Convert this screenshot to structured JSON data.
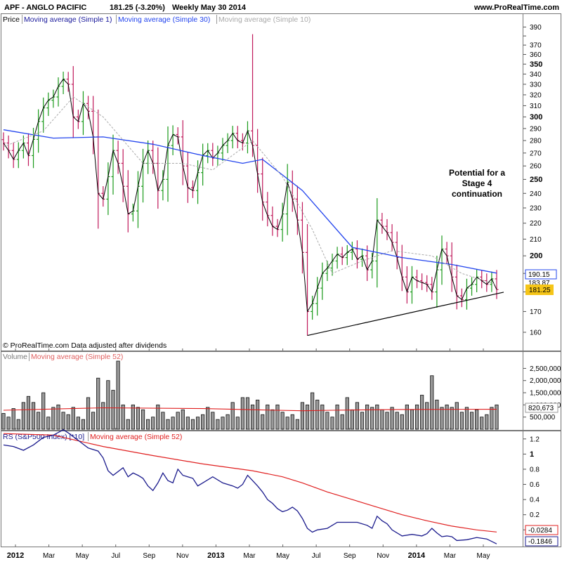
{
  "header": {
    "title": "APF - ANGLO PACIFIC",
    "quote": "181.25 (-3.20%)",
    "period": "Weekly  May 30 2014",
    "site": "www.ProRealTime.com"
  },
  "price_legend": {
    "price": "Price",
    "ma1": "Moving average (Simple 1)",
    "ma30": "Moving average (Simple 30)",
    "ma10": "Moving average (Simple 10)"
  },
  "copyright": "© ProRealTime.com  Data adjusted after dividends",
  "volume_legend": {
    "volume": "Volume",
    "ma52": "Moving average (Simple 52)"
  },
  "rs_legend": {
    "rs": "RS (S&P500 Index) [*10]",
    "ma52": "Moving average (Simple 52)"
  },
  "annotation": [
    "Potential for a",
    "Stage 4",
    "continuation"
  ],
  "value_tags": {
    "ma30_value": "190.15",
    "ma10_value": "183.87",
    "last_price": "181.25",
    "volume_ma": "820,673",
    "rs_ma": "-0.0284",
    "rs_value": "-0.1846"
  },
  "colors": {
    "up_bar": "#1a9a1a",
    "down_bar": "#c0185a",
    "ma30": "#2244ee",
    "ma10": "#aaaaaa",
    "ma1": "#000000",
    "rs_line": "#1a1a8c",
    "rs_ma": "#e02020",
    "price_tag_bg": "#f5c518",
    "panel_border": "#777777"
  },
  "chart_data": [
    {
      "type": "ohlc",
      "title": "APF - ANGLO PACIFIC",
      "x_axis": {
        "labels": [
          "2012",
          "Mar",
          "May",
          "Jul",
          "Sep",
          "Nov",
          "2013",
          "Mar",
          "May",
          "Jul",
          "Sep",
          "Nov",
          "2014",
          "Mar",
          "May"
        ],
        "bold": [
          "2012",
          "2013",
          "2014"
        ]
      },
      "y_axis": {
        "scale": "log",
        "range": [
          152,
          392
        ],
        "ticks": [
          160,
          170,
          180,
          190,
          200,
          210,
          220,
          230,
          240,
          250,
          260,
          270,
          280,
          290,
          300,
          310,
          320,
          330,
          340,
          350,
          360,
          370,
          380,
          390
        ],
        "labeled_ticks": [
          390,
          370,
          360,
          350,
          340,
          330,
          320,
          310,
          300,
          290,
          280,
          270,
          260,
          250,
          240,
          230,
          220,
          210,
          200,
          170,
          160
        ],
        "bold_ticks": [
          350,
          300,
          250,
          200
        ]
      },
      "series": [
        {
          "name": "Price",
          "style": "weekly OHLC bars, green = up, red = down",
          "close": [
            278,
            272,
            265,
            272,
            278,
            268,
            281,
            296,
            308,
            315,
            318,
            328,
            335,
            330,
            300,
            296,
            312,
            305,
            283,
            240,
            236,
            252,
            272,
            262,
            245,
            226,
            228,
            245,
            262,
            272,
            262,
            242,
            250,
            276,
            285,
            283,
            260,
            244,
            242,
            255,
            268,
            272,
            266,
            270,
            276,
            280,
            286,
            280,
            278,
            288,
            276,
            254,
            234,
            225,
            218,
            216,
            226,
            248,
            236,
            222,
            202,
            170,
            174,
            182,
            190,
            193,
            197,
            201,
            199,
            202,
            204,
            198,
            200,
            192,
            197,
            222,
            218,
            214,
            208,
            199,
            188,
            180,
            188,
            186,
            185,
            184,
            180,
            192,
            204,
            200,
            188,
            178,
            176,
            182,
            184,
            188,
            186,
            184,
            187,
            181.25
          ]
        },
        {
          "name": "Moving average (Simple 30)",
          "points": [
            [
              0,
              289
            ],
            [
              10,
              282
            ],
            [
              20,
              283
            ],
            [
              30,
              277
            ],
            [
              40,
              268
            ],
            [
              48,
              262
            ],
            [
              52,
              265
            ],
            [
              60,
              242
            ],
            [
              70,
              205
            ],
            [
              80,
              199
            ],
            [
              90,
              195
            ],
            [
              99,
              190.15
            ]
          ]
        },
        {
          "name": "Moving average (Simple 10)",
          "points": [
            [
              0,
              275
            ],
            [
              8,
              288
            ],
            [
              14,
              318
            ],
            [
              20,
              300
            ],
            [
              28,
              262
            ],
            [
              36,
              262
            ],
            [
              42,
              257
            ],
            [
              50,
              280
            ],
            [
              56,
              252
            ],
            [
              62,
              216
            ],
            [
              66,
              190
            ],
            [
              72,
              197
            ],
            [
              78,
              203
            ],
            [
              86,
              200
            ],
            [
              92,
              190
            ],
            [
              99,
              183.87
            ]
          ]
        }
      ],
      "annotations": [
        {
          "text": "Potential for a Stage 4 continuation"
        },
        {
          "shape": "trend line",
          "from": [
            61,
            158.5
          ],
          "to": [
            99,
            179.5
          ]
        }
      ]
    },
    {
      "type": "bar",
      "title": "Volume",
      "y_axis": {
        "range": [
          0,
          2800000
        ],
        "ticks": [
          500000,
          1000000,
          1500000,
          2000000,
          2500000
        ],
        "tick_labels": [
          "500,000",
          "1,000,000",
          "1,500,000",
          "2,000,000",
          "2,500,000"
        ]
      },
      "series": [
        {
          "name": "Volume",
          "values": [
            650000,
            500000,
            850000,
            400000,
            1100000,
            1350000,
            1100000,
            700000,
            1500000,
            500000,
            900000,
            1000000,
            700000,
            600000,
            900000,
            500000,
            400000,
            1300000,
            700000,
            2100000,
            1100000,
            2000000,
            1600000,
            2800000,
            1000000,
            400000,
            1000000,
            900000,
            800000,
            400000,
            500000,
            1000000,
            700000,
            400000,
            500000,
            700000,
            800000,
            500000,
            400000,
            500000,
            600000,
            900000,
            700000,
            400000,
            500000,
            600000,
            1100000,
            500000,
            1300000,
            1300000,
            1000000,
            1200000,
            600000,
            1000000,
            800000,
            1000000,
            700000,
            500000,
            600000,
            400000,
            1100000,
            1000000,
            1500000,
            1200000,
            1000000,
            700000,
            500000,
            1000000,
            600000,
            1300000,
            800000,
            1100000,
            700000,
            1000000,
            900000,
            1000000,
            800000,
            700000,
            900000,
            700000,
            600000,
            1000000,
            800000,
            1000000,
            1400000,
            1100000,
            2200000,
            1200000,
            900000,
            1000000,
            900000,
            1100000,
            700000,
            900000,
            700000,
            800000,
            500000,
            600000,
            900000,
            1000000
          ]
        },
        {
          "name": "Moving average (Simple 52)",
          "points": [
            [
              0,
              780000
            ],
            [
              20,
              880000
            ],
            [
              40,
              850000
            ],
            [
              52,
              790000
            ],
            [
              60,
              760000
            ],
            [
              66,
              780000
            ],
            [
              80,
              810000
            ],
            [
              99,
              820673
            ]
          ]
        }
      ]
    },
    {
      "type": "line",
      "title": "RS (S&P500 Index) [*10]",
      "y_axis": {
        "range": [
          -0.22,
          1.3
        ],
        "ticks": [
          0,
          0.2,
          0.4,
          0.6,
          0.8,
          1,
          1.2
        ],
        "tick_labels": [
          "0",
          "0.2",
          "0.4",
          "0.6",
          "0.8",
          "1",
          "1.2"
        ],
        "bold_ticks": [
          1
        ]
      },
      "series": [
        {
          "name": "RS (S&P500 Index) [*10]",
          "points": [
            [
              0,
              1.12
            ],
            [
              2,
              1.1
            ],
            [
              4,
              1.05
            ],
            [
              6,
              1.12
            ],
            [
              8,
              1.22
            ],
            [
              10,
              1.25
            ],
            [
              12,
              1.32
            ],
            [
              13,
              1.28
            ],
            [
              15,
              1.18
            ],
            [
              17,
              1.08
            ],
            [
              19,
              1.04
            ],
            [
              20,
              0.95
            ],
            [
              21,
              0.78
            ],
            [
              22,
              0.72
            ],
            [
              24,
              0.82
            ],
            [
              25,
              0.7
            ],
            [
              26,
              0.75
            ],
            [
              27,
              0.72
            ],
            [
              28,
              0.68
            ],
            [
              29,
              0.58
            ],
            [
              30,
              0.52
            ],
            [
              31,
              0.62
            ],
            [
              32,
              0.75
            ],
            [
              33,
              0.65
            ],
            [
              34,
              0.62
            ],
            [
              35,
              0.8
            ],
            [
              36,
              0.72
            ],
            [
              37,
              0.7
            ],
            [
              38,
              0.68
            ],
            [
              39,
              0.58
            ],
            [
              40,
              0.62
            ],
            [
              42,
              0.7
            ],
            [
              44,
              0.62
            ],
            [
              46,
              0.58
            ],
            [
              47,
              0.55
            ],
            [
              48,
              0.6
            ],
            [
              49,
              0.72
            ],
            [
              50,
              0.65
            ],
            [
              51,
              0.58
            ],
            [
              52,
              0.5
            ],
            [
              53,
              0.4
            ],
            [
              54,
              0.35
            ],
            [
              55,
              0.28
            ],
            [
              56,
              0.24
            ],
            [
              57,
              0.26
            ],
            [
              58,
              0.3
            ],
            [
              59,
              0.25
            ],
            [
              60,
              0.15
            ],
            [
              61,
              0.02
            ],
            [
              62,
              -0.03
            ],
            [
              63,
              0.0
            ],
            [
              65,
              0.02
            ],
            [
              67,
              0.1
            ],
            [
              69,
              0.1
            ],
            [
              71,
              0.1
            ],
            [
              73,
              0.06
            ],
            [
              74,
              0.02
            ],
            [
              75,
              0.18
            ],
            [
              76,
              0.12
            ],
            [
              77,
              0.08
            ],
            [
              78,
              0.0
            ],
            [
              80,
              -0.08
            ],
            [
              82,
              -0.06
            ],
            [
              84,
              -0.08
            ],
            [
              85,
              -0.05
            ],
            [
              86,
              0.02
            ],
            [
              87,
              -0.04
            ],
            [
              88,
              -0.09
            ],
            [
              89,
              -0.08
            ],
            [
              90,
              -0.09
            ],
            [
              91,
              -0.14
            ],
            [
              93,
              -0.13
            ],
            [
              95,
              -0.1
            ],
            [
              97,
              -0.12
            ],
            [
              99,
              -0.1846
            ]
          ]
        },
        {
          "name": "Moving average (Simple 52)",
          "points": [
            [
              0,
              1.27
            ],
            [
              10,
              1.25
            ],
            [
              20,
              1.1
            ],
            [
              30,
              0.98
            ],
            [
              40,
              0.87
            ],
            [
              50,
              0.78
            ],
            [
              56,
              0.7
            ],
            [
              60,
              0.62
            ],
            [
              65,
              0.5
            ],
            [
              70,
              0.4
            ],
            [
              75,
              0.3
            ],
            [
              80,
              0.2
            ],
            [
              85,
              0.12
            ],
            [
              90,
              0.05
            ],
            [
              95,
              0.0
            ],
            [
              99,
              -0.0284
            ]
          ]
        }
      ]
    }
  ]
}
